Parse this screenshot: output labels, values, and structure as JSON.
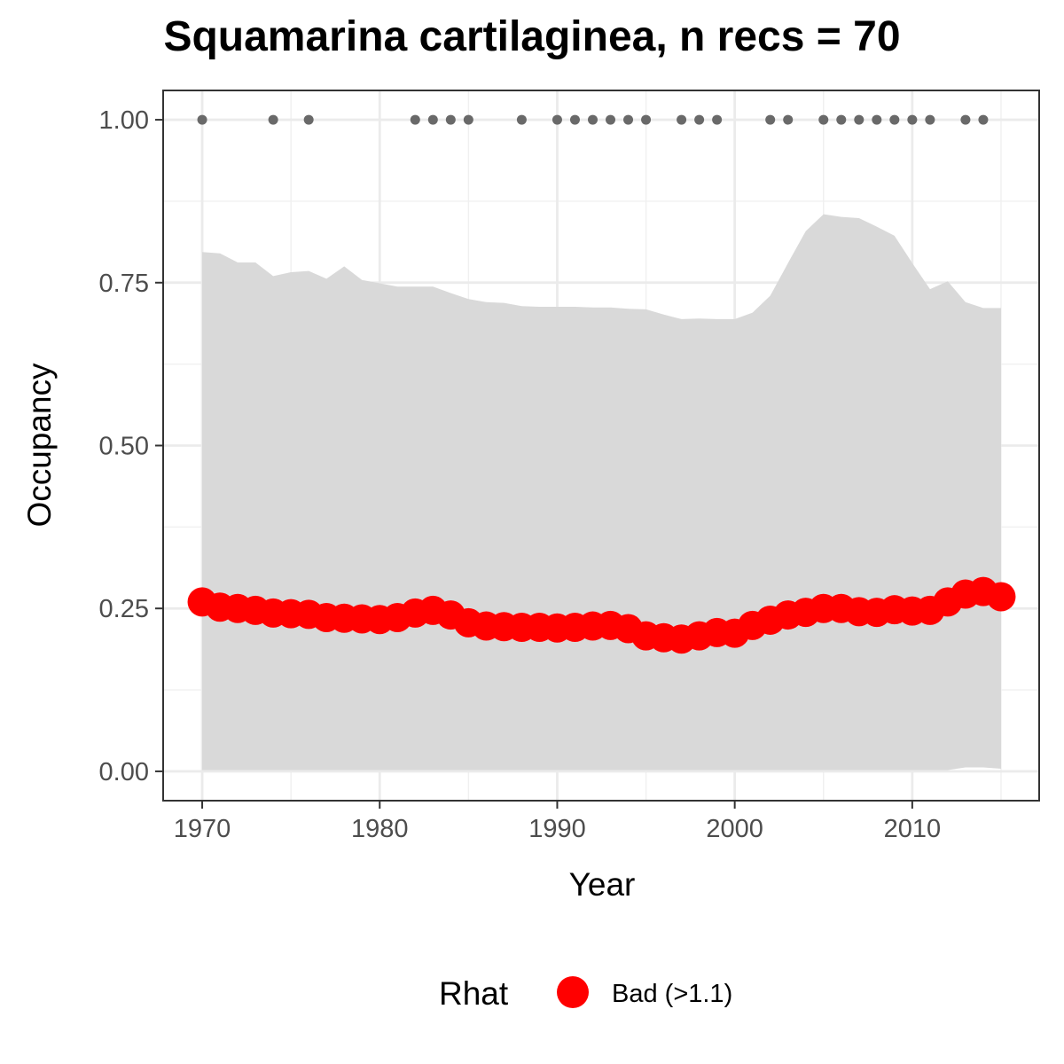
{
  "chart_data": {
    "type": "line",
    "title": "Squamarina cartilaginea, n recs = 70",
    "xlabel": "Year",
    "ylabel": "Occupancy",
    "xlim": [
      1967.8,
      1917.0
    ],
    "ylim": [
      -0.045,
      1.045
    ],
    "x_ticks": [
      1970,
      1980,
      1990,
      2000,
      2010
    ],
    "x_tick_labels": [
      "1970",
      "1980",
      "1990",
      "2000",
      "2010"
    ],
    "y_ticks": [
      0,
      0.25,
      0.5,
      0.75,
      1.0
    ],
    "y_tick_labels": [
      "0.00",
      "0.25",
      "0.50",
      "0.75",
      "1.00"
    ],
    "grid": true,
    "legend_position": "bottom",
    "legend": {
      "title": "Rhat",
      "entries": [
        {
          "label": "Bad (>1.1)",
          "color": "#ff0000"
        }
      ]
    },
    "colors": {
      "occupancy_points": "#ff0000",
      "record_points": "#696969",
      "ribbon": "#d9d9d9"
    },
    "x": [
      1970,
      1971,
      1972,
      1973,
      1974,
      1975,
      1976,
      1977,
      1978,
      1979,
      1980,
      1981,
      1982,
      1983,
      1984,
      1985,
      1986,
      1987,
      1988,
      1989,
      1990,
      1991,
      1992,
      1993,
      1994,
      1995,
      1996,
      1997,
      1998,
      1999,
      2000,
      2001,
      2002,
      2003,
      2004,
      2005,
      2006,
      2007,
      2008,
      2009,
      2010,
      2011,
      2012,
      2013,
      2014,
      2015
    ],
    "series": [
      {
        "values": [
          0.26,
          0.252,
          0.25,
          0.247,
          0.243,
          0.242,
          0.241,
          0.236,
          0.235,
          0.234,
          0.233,
          0.236,
          0.243,
          0.247,
          0.24,
          0.228,
          0.223,
          0.222,
          0.221,
          0.221,
          0.22,
          0.221,
          0.223,
          0.224,
          0.219,
          0.208,
          0.205,
          0.203,
          0.208,
          0.213,
          0.212,
          0.224,
          0.232,
          0.24,
          0.244,
          0.25,
          0.25,
          0.245,
          0.244,
          0.248,
          0.246,
          0.247,
          0.26,
          0.272,
          0.276,
          0.268
        ]
      }
    ],
    "ribbon": {
      "upper": [
        0.797,
        0.795,
        0.781,
        0.781,
        0.76,
        0.766,
        0.768,
        0.756,
        0.775,
        0.754,
        0.749,
        0.744,
        0.744,
        0.744,
        0.734,
        0.725,
        0.72,
        0.719,
        0.714,
        0.713,
        0.713,
        0.713,
        0.712,
        0.712,
        0.71,
        0.709,
        0.701,
        0.694,
        0.695,
        0.694,
        0.694,
        0.704,
        0.73,
        0.78,
        0.829,
        0.855,
        0.851,
        0.849,
        0.836,
        0.822,
        0.78,
        0.74,
        0.752,
        0.72,
        0.711,
        0.711
      ],
      "lower": [
        0.002,
        0.002,
        0.002,
        0.002,
        0.002,
        0.002,
        0.002,
        0.002,
        0.002,
        0.002,
        0.002,
        0.002,
        0.002,
        0.002,
        0.002,
        0.002,
        0.002,
        0.002,
        0.002,
        0.002,
        0.002,
        0.002,
        0.002,
        0.002,
        0.002,
        0.002,
        0.002,
        0.002,
        0.002,
        0.002,
        0.002,
        0.002,
        0.002,
        0.002,
        0.002,
        0.002,
        0.002,
        0.002,
        0.002,
        0.002,
        0.002,
        0.002,
        0.002,
        0.006,
        0.006,
        0.004
      ]
    },
    "records": {
      "x": [
        1970,
        1974,
        1976,
        1982,
        1983,
        1984,
        1985,
        1988,
        1990,
        1991,
        1992,
        1993,
        1994,
        1995,
        1997,
        1998,
        1999,
        2002,
        2003,
        2005,
        2006,
        2007,
        2008,
        2009,
        2010,
        2011,
        2013,
        2014
      ],
      "y": [
        1,
        1,
        1,
        1,
        1,
        1,
        1,
        1,
        1,
        1,
        1,
        1,
        1,
        1,
        1,
        1,
        1,
        1,
        1,
        1,
        1,
        1,
        1,
        1,
        1,
        1,
        1,
        1
      ]
    }
  }
}
